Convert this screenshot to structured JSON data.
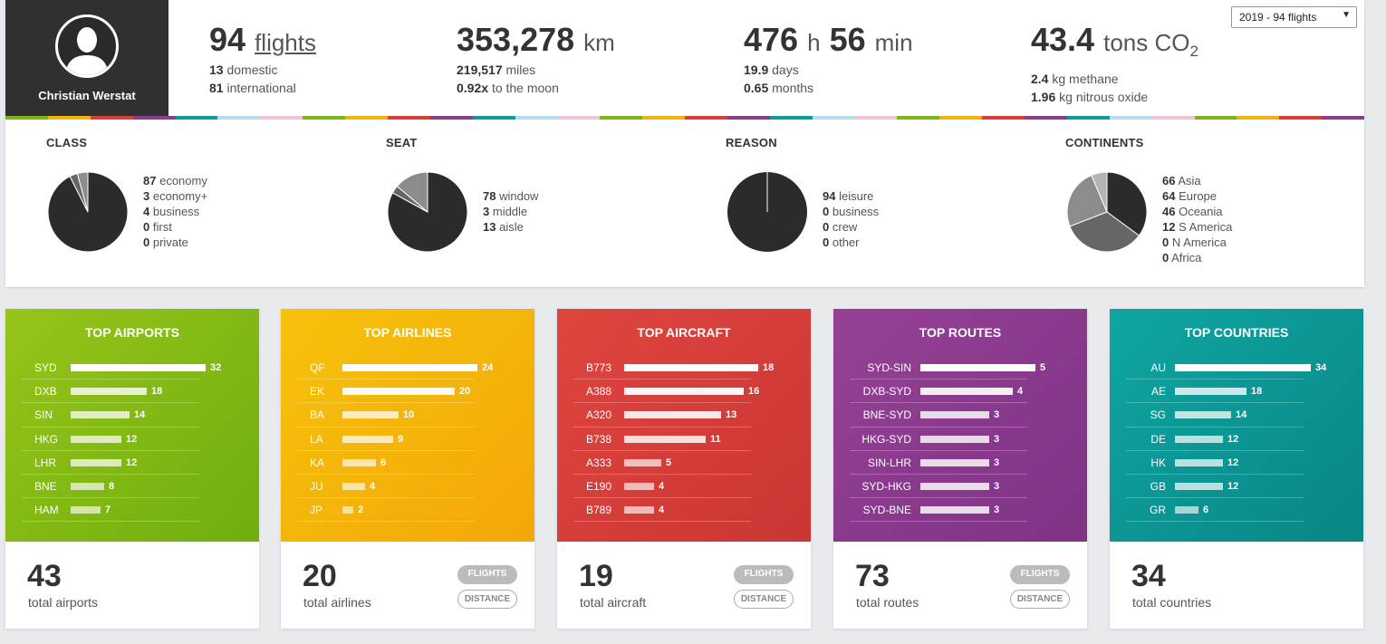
{
  "user": {
    "name": "Christian Werstat"
  },
  "year_select": {
    "value": "2019 - 94 flights",
    "arrow": "▼"
  },
  "stats": {
    "flights": {
      "value": "94",
      "unit": "flights",
      "sub1_value": "13",
      "sub1_text": "domestic",
      "sub2_value": "81",
      "sub2_text": "international"
    },
    "distance": {
      "value": "353,278",
      "unit": "km",
      "sub1_value": "219,517",
      "sub1_text": "miles",
      "sub2_value": "0.92x",
      "sub2_text": "to the moon"
    },
    "time": {
      "hours": "476",
      "h_unit": "h",
      "minutes": "56",
      "m_unit": "min",
      "sub1_value": "19.9",
      "sub1_text": "days",
      "sub2_value": "0.65",
      "sub2_text": "months"
    },
    "co2": {
      "value": "43.4",
      "unit": "tons CO",
      "unit_sub": "2",
      "sub1_value": "2.4",
      "sub1_text": "kg methane",
      "sub2_value": "1.96",
      "sub2_text": "kg nitrous oxide"
    }
  },
  "stripe_colors": [
    "#7cb518",
    "#f4b30a",
    "#d9403a",
    "#8e3b8f",
    "#109a98",
    "#b7dcf0",
    "#f2c3d8",
    "#7cb518",
    "#f4b30a",
    "#d9403a",
    "#8e3b8f",
    "#109a98",
    "#b7dcf0",
    "#f2c3d8",
    "#7cb518",
    "#f4b30a",
    "#d9403a",
    "#8e3b8f",
    "#109a98",
    "#b7dcf0",
    "#f2c3d8",
    "#7cb518",
    "#f4b30a",
    "#d9403a",
    "#8e3b8f",
    "#109a98",
    "#b7dcf0",
    "#f2c3d8",
    "#7cb518",
    "#f4b30a",
    "#d9403a",
    "#8e3b8f"
  ],
  "pies": [
    {
      "title": "CLASS",
      "items": [
        {
          "value": 87,
          "label": "economy"
        },
        {
          "value": 3,
          "label": "economy+"
        },
        {
          "value": 4,
          "label": "business"
        },
        {
          "value": 0,
          "label": "first"
        },
        {
          "value": 0,
          "label": "private"
        }
      ]
    },
    {
      "title": "SEAT",
      "items": [
        {
          "value": 78,
          "label": "window"
        },
        {
          "value": 3,
          "label": "middle"
        },
        {
          "value": 13,
          "label": "aisle"
        }
      ]
    },
    {
      "title": "REASON",
      "items": [
        {
          "value": 94,
          "label": "leisure"
        },
        {
          "value": 0,
          "label": "business"
        },
        {
          "value": 0,
          "label": "crew"
        },
        {
          "value": 0,
          "label": "other"
        }
      ]
    },
    {
      "title": "CONTINENTS",
      "items": [
        {
          "value": 66,
          "label": "Asia"
        },
        {
          "value": 64,
          "label": "Europe"
        },
        {
          "value": 46,
          "label": "Oceania"
        },
        {
          "value": 12,
          "label": "S America"
        },
        {
          "value": 0,
          "label": "N America"
        },
        {
          "value": 0,
          "label": "Africa"
        }
      ]
    }
  ],
  "pie_colors": [
    "#2b2b2b",
    "#666666",
    "#8c8c8c",
    "#b3b3b3",
    "#cccccc",
    "#e0e0e0"
  ],
  "cards": [
    {
      "id": "airports",
      "title": "TOP AIRPORTS",
      "max": 32,
      "rows": [
        {
          "label": "SYD",
          "value": 32
        },
        {
          "label": "DXB",
          "value": 18
        },
        {
          "label": "SIN",
          "value": 14
        },
        {
          "label": "HKG",
          "value": 12
        },
        {
          "label": "LHR",
          "value": 12
        },
        {
          "label": "BNE",
          "value": 8
        },
        {
          "label": "HAM",
          "value": 7
        }
      ],
      "total": "43",
      "total_label": "total airports",
      "buttons": false
    },
    {
      "id": "airlines",
      "title": "TOP AIRLINES",
      "max": 24,
      "rows": [
        {
          "label": "QF",
          "value": 24
        },
        {
          "label": "EK",
          "value": 20
        },
        {
          "label": "BA",
          "value": 10
        },
        {
          "label": "LA",
          "value": 9
        },
        {
          "label": "KA",
          "value": 6
        },
        {
          "label": "JU",
          "value": 4
        },
        {
          "label": "JP",
          "value": 2
        }
      ],
      "total": "20",
      "total_label": "total airlines",
      "buttons": true
    },
    {
      "id": "aircraft",
      "title": "TOP AIRCRAFT",
      "max": 18,
      "rows": [
        {
          "label": "B773",
          "value": 18
        },
        {
          "label": "A388",
          "value": 16
        },
        {
          "label": "A320",
          "value": 13
        },
        {
          "label": "B738",
          "value": 11
        },
        {
          "label": "A333",
          "value": 5
        },
        {
          "label": "E190",
          "value": 4
        },
        {
          "label": "B789",
          "value": 4
        }
      ],
      "total": "19",
      "total_label": "total aircraft",
      "buttons": true
    },
    {
      "id": "routes",
      "title": "TOP ROUTES",
      "max": 5,
      "rows": [
        {
          "label": "SYD-SIN",
          "value": 5
        },
        {
          "label": "DXB-SYD",
          "value": 4
        },
        {
          "label": "BNE-SYD",
          "value": 3
        },
        {
          "label": "HKG-SYD",
          "value": 3
        },
        {
          "label": "SIN-LHR",
          "value": 3
        },
        {
          "label": "SYD-HKG",
          "value": 3
        },
        {
          "label": "SYD-BNE",
          "value": 3
        }
      ],
      "total": "73",
      "total_label": "total routes",
      "buttons": true
    },
    {
      "id": "countries",
      "title": "TOP COUNTRIES",
      "max": 34,
      "rows": [
        {
          "label": "AU",
          "value": 34
        },
        {
          "label": "AE",
          "value": 18
        },
        {
          "label": "SG",
          "value": 14
        },
        {
          "label": "DE",
          "value": 12
        },
        {
          "label": "HK",
          "value": 12
        },
        {
          "label": "GB",
          "value": 12
        },
        {
          "label": "GR",
          "value": 6
        }
      ],
      "total": "34",
      "total_label": "total countries",
      "buttons": false
    }
  ],
  "buttons": {
    "flights": "FLIGHTS",
    "distance": "DISTANCE"
  }
}
